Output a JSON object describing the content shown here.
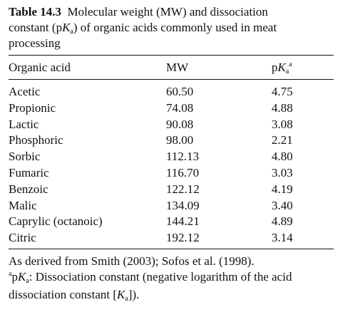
{
  "caption": {
    "label": "Table 14.3",
    "line1_rest": "Molecular weight (MW) and dissociation",
    "line2_a": "constant (p",
    "line2_K": "K",
    "line2_sub": "a",
    "line2_b": ") of organic acids commonly used in meat",
    "line3": "processing"
  },
  "header": {
    "acid": "Organic acid",
    "mw": "MW",
    "pka_p": "p",
    "pka_K": "K",
    "pka_sub": "a",
    "pka_sup": "a"
  },
  "rows": [
    {
      "acid": "Acetic",
      "mw": "60.50",
      "pka": "4.75"
    },
    {
      "acid": "Propionic",
      "mw": "74.08",
      "pka": "4.88"
    },
    {
      "acid": "Lactic",
      "mw": "90.08",
      "pka": "3.08"
    },
    {
      "acid": "Phosphoric",
      "mw": "98.00",
      "pka": "2.21"
    },
    {
      "acid": "Sorbic",
      "mw": "112.13",
      "pka": "4.80"
    },
    {
      "acid": "Fumaric",
      "mw": "116.70",
      "pka": "3.03"
    },
    {
      "acid": "Benzoic",
      "mw": "122.12",
      "pka": "4.19"
    },
    {
      "acid": "Malic",
      "mw": "134.09",
      "pka": "3.40"
    },
    {
      "acid": "Caprylic (octanoic)",
      "mw": "144.21",
      "pka": "4.89"
    },
    {
      "acid": "Citric",
      "mw": "192.12",
      "pka": "3.14"
    }
  ],
  "footnotes": {
    "source": "As derived from Smith (2003); Sofos et al. (1998).",
    "note_marker": "a",
    "note_p": "p",
    "note_K": "K",
    "note_sub": "a",
    "note_text": ": Dissociation constant (negative logarithm of the acid",
    "note_line2_a": "dissociation constant [",
    "note_line2_K": "K",
    "note_line2_sub": "a",
    "note_line2_b": "])."
  }
}
